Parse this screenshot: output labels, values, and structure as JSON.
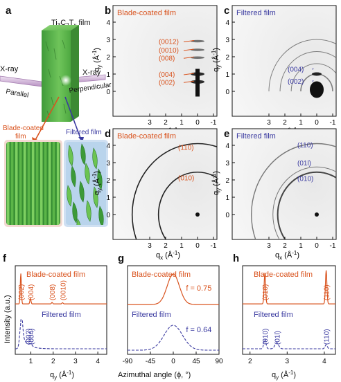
{
  "panel_labels": {
    "a": "a",
    "b": "b",
    "c": "c",
    "d": "d",
    "e": "e",
    "f": "f",
    "g": "g",
    "h": "h"
  },
  "panel_a": {
    "film_title": "Ti3C2Tx film",
    "xray_left": "X-ray",
    "parallel": "Parallel",
    "xray_right": "X-ray",
    "perpendicular": "Perpendicular",
    "blade_label_1": "Blade-coated",
    "blade_label_2": "film",
    "filtered_label": "Filtered film"
  },
  "colors": {
    "blade": "#d9531e",
    "filtered": "#3a3aa0"
  },
  "axes": {
    "qx": "q",
    "qx_sub": "x",
    "qy": "q",
    "qy_sub": "y",
    "unit": "(Å⁻¹)",
    "intensity": "Intensity (a.u.)",
    "qy_axis": "q",
    "azimuthal": "Azimuthal angle (ϕ, °)"
  },
  "panel_b": {
    "title": "Blade-coated film",
    "peaks": [
      "(0012)",
      "(0010)",
      "(008)",
      "(004)",
      "(002)"
    ]
  },
  "panel_c": {
    "title": "Filtered film",
    "peaks": [
      "(004)",
      "(002)"
    ]
  },
  "panel_d": {
    "title": "Blade-coated film",
    "peaks": [
      "(110)",
      "(010)"
    ]
  },
  "panel_e": {
    "title": "Filtered film",
    "peaks": [
      "(110)",
      "(01l)",
      "(010)"
    ]
  },
  "pattern_ticks": {
    "qx": [
      "3",
      "2",
      "1",
      "0",
      "-1"
    ],
    "qy": [
      "4",
      "3",
      "2",
      "1",
      "0"
    ]
  },
  "chart_data": [
    {
      "type": "line",
      "panel": "f",
      "xlabel": "qy (Å⁻¹)",
      "ylabel": "Intensity (a.u.)",
      "xlim": [
        0.3,
        4.4
      ],
      "xticks": [
        "1",
        "2",
        "3",
        "4"
      ],
      "series": [
        {
          "name": "Blade-coated film",
          "peaks_q": [
            0.55,
            0.98,
            1.95,
            2.42
          ],
          "peak_labels": [
            "(002)",
            "(004)",
            "(008)",
            "(0010)"
          ]
        },
        {
          "name": "Filtered film",
          "peaks_q": [
            0.56,
            1.0
          ],
          "peak_labels": [
            "(002)",
            "(004)"
          ]
        }
      ]
    },
    {
      "type": "line",
      "panel": "g",
      "xlabel": "Azimuthal angle (ϕ, °)",
      "ylabel": "",
      "xlim": [
        -90,
        90
      ],
      "xticks": [
        "-90",
        "-45",
        "0",
        "45",
        "90"
      ],
      "series": [
        {
          "name": "Blade-coated film",
          "center": 0,
          "f": "f = 0.75"
        },
        {
          "name": "Filtered film",
          "center": 0,
          "f": "f = 0.64"
        }
      ]
    },
    {
      "type": "line",
      "panel": "h",
      "xlabel": "qy (Å⁻¹)",
      "ylabel": "",
      "xlim": [
        1.8,
        4.3
      ],
      "xticks": [
        "2",
        "3",
        "4"
      ],
      "series": [
        {
          "name": "Blade-coated film",
          "peaks_q": [
            2.4,
            4.05
          ],
          "peak_labels": [
            "(010)",
            "(110)"
          ]
        },
        {
          "name": "Filtered film",
          "peaks_q": [
            2.4,
            2.72,
            4.05
          ],
          "peak_labels": [
            "(010)",
            "(01l)",
            "(110)"
          ]
        }
      ]
    }
  ]
}
